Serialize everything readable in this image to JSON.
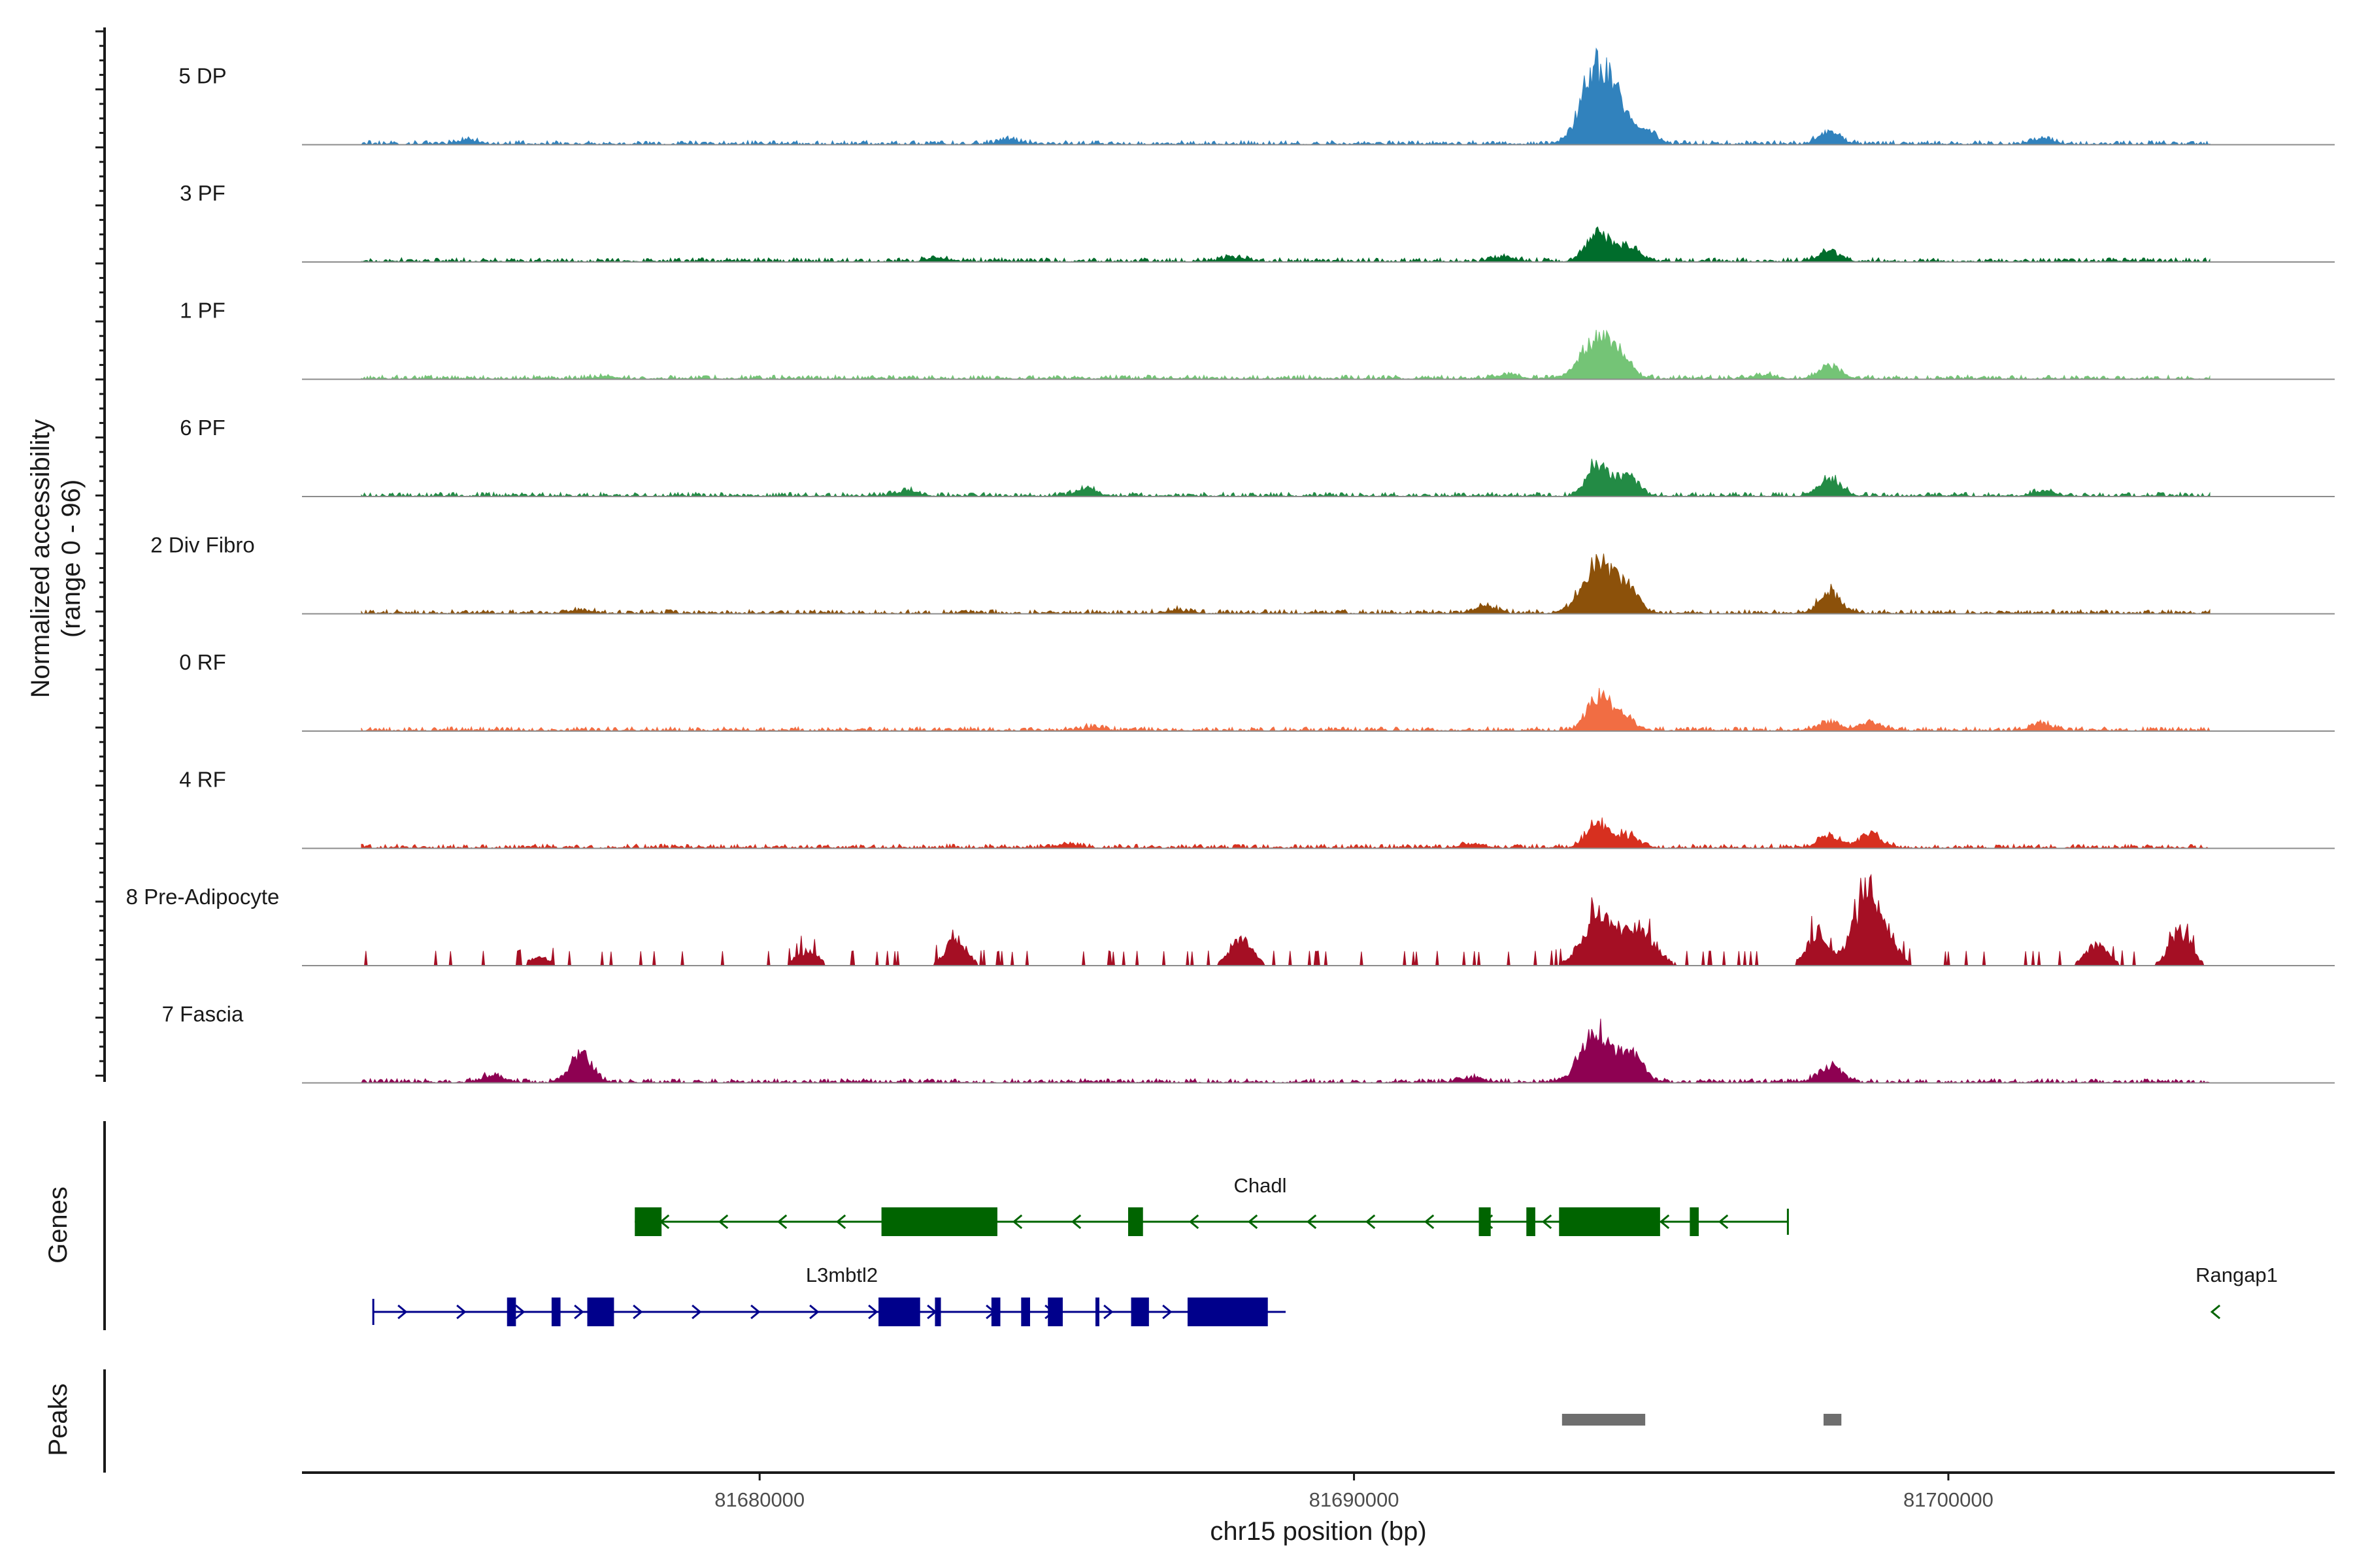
{
  "chart_data": {
    "type": "area",
    "title": "",
    "xlabel": "chr15 position (bp)",
    "ylabel": "Normalized accessibility",
    "ylabel_sub": "(range 0 - 96)",
    "xlim": [
      81672300,
      81706500
    ],
    "x_ticks": [
      81680000,
      81690000,
      81700000
    ],
    "x_tick_labels": [
      "81680000",
      "81690000",
      "81700000"
    ],
    "ylim": [
      0,
      96
    ],
    "tracks": [
      {
        "name": "5 DP",
        "color": "#3182bd",
        "peaks": [
          {
            "x": 81694100,
            "h": 92
          },
          {
            "x": 81694500,
            "h": 25
          },
          {
            "x": 81694900,
            "h": 15
          },
          {
            "x": 81698000,
            "h": 14
          },
          {
            "x": 81684200,
            "h": 6
          },
          {
            "x": 81701600,
            "h": 6
          },
          {
            "x": 81675100,
            "h": 5
          }
        ]
      },
      {
        "name": "3 PF",
        "color": "#006d2c",
        "peaks": [
          {
            "x": 81694100,
            "h": 38
          },
          {
            "x": 81694600,
            "h": 18
          },
          {
            "x": 81698000,
            "h": 12
          },
          {
            "x": 81688000,
            "h": 5
          },
          {
            "x": 81692500,
            "h": 5
          },
          {
            "x": 81683000,
            "h": 4
          }
        ]
      },
      {
        "name": "1 PF",
        "color": "#74c476",
        "peaks": [
          {
            "x": 81694100,
            "h": 50
          },
          {
            "x": 81694500,
            "h": 18
          },
          {
            "x": 81698000,
            "h": 16
          },
          {
            "x": 81692600,
            "h": 5
          },
          {
            "x": 81696900,
            "h": 5
          },
          {
            "x": 81677400,
            "h": 3
          }
        ]
      },
      {
        "name": "6 PF",
        "color": "#238b45",
        "peaks": [
          {
            "x": 81694100,
            "h": 38
          },
          {
            "x": 81694600,
            "h": 25
          },
          {
            "x": 81698000,
            "h": 22
          },
          {
            "x": 81685500,
            "h": 8
          },
          {
            "x": 81682500,
            "h": 6
          },
          {
            "x": 81701600,
            "h": 6
          }
        ]
      },
      {
        "name": "2 Div Fibro",
        "color": "#8c510a",
        "peaks": [
          {
            "x": 81694100,
            "h": 58
          },
          {
            "x": 81694600,
            "h": 30
          },
          {
            "x": 81698000,
            "h": 25
          },
          {
            "x": 81692200,
            "h": 8
          },
          {
            "x": 81687000,
            "h": 4
          },
          {
            "x": 81677000,
            "h": 4
          }
        ]
      },
      {
        "name": "0 RF",
        "color": "#f16d43",
        "peaks": [
          {
            "x": 81694100,
            "h": 40
          },
          {
            "x": 81694500,
            "h": 18
          },
          {
            "x": 81698000,
            "h": 10
          },
          {
            "x": 81698700,
            "h": 10
          },
          {
            "x": 81685600,
            "h": 4
          },
          {
            "x": 81701600,
            "h": 8
          }
        ]
      },
      {
        "name": "4 RF",
        "color": "#d7301f",
        "peaks": [
          {
            "x": 81694100,
            "h": 30
          },
          {
            "x": 81694600,
            "h": 15
          },
          {
            "x": 81698000,
            "h": 14
          },
          {
            "x": 81698700,
            "h": 16
          },
          {
            "x": 81685200,
            "h": 5
          },
          {
            "x": 81692000,
            "h": 5
          }
        ]
      },
      {
        "name": "8 Pre-Adipocyte",
        "color": "#a50f24",
        "peaks": [
          {
            "x": 81694100,
            "h": 60
          },
          {
            "x": 81694800,
            "h": 45
          },
          {
            "x": 81698700,
            "h": 92
          },
          {
            "x": 81697800,
            "h": 40
          },
          {
            "x": 81688100,
            "h": 35
          },
          {
            "x": 81683300,
            "h": 30
          },
          {
            "x": 81703900,
            "h": 40
          },
          {
            "x": 81702500,
            "h": 25
          },
          {
            "x": 81680800,
            "h": 18
          },
          {
            "x": 81676300,
            "h": 10
          }
        ]
      },
      {
        "name": "7 Fascia",
        "color": "#8e0152",
        "peaks": [
          {
            "x": 81694100,
            "h": 62
          },
          {
            "x": 81694700,
            "h": 30
          },
          {
            "x": 81677000,
            "h": 34
          },
          {
            "x": 81698000,
            "h": 20
          },
          {
            "x": 81675500,
            "h": 8
          },
          {
            "x": 81692000,
            "h": 6
          }
        ]
      }
    ],
    "genes_panel_label": "Genes",
    "peaks_panel_label": "Peaks",
    "genes": [
      {
        "name": "Chadl",
        "strand": "-",
        "color": "#006400",
        "start": 81677900,
        "end": 81697300,
        "exons": [
          [
            81677900,
            81678350
          ],
          [
            81682050,
            81684000
          ],
          [
            81686200,
            81686450
          ],
          [
            81692100,
            81692300
          ],
          [
            81692900,
            81693050
          ],
          [
            81693450,
            81695150
          ],
          [
            81695650,
            81695800
          ]
        ]
      },
      {
        "name": "L3mbtl2",
        "strand": "+",
        "color": "#00008b",
        "start": 81673500,
        "end": 81688850,
        "exons": [
          [
            81675750,
            81675900
          ],
          [
            81676500,
            81676650
          ],
          [
            81677100,
            81677550
          ],
          [
            81682000,
            81682700
          ],
          [
            81682950,
            81683050
          ],
          [
            81683900,
            81684050
          ],
          [
            81684400,
            81684550
          ],
          [
            81684850,
            81685100
          ],
          [
            81685650,
            81685700
          ],
          [
            81686250,
            81686550
          ],
          [
            81687200,
            81688550
          ]
        ]
      },
      {
        "name": "Rangap1",
        "strand": "-",
        "color": "#006400",
        "start": 81704400,
        "end": 81704600,
        "exons": []
      }
    ],
    "peak_regions": [
      [
        81693500,
        81694900
      ],
      [
        81697900,
        81698200
      ]
    ]
  }
}
